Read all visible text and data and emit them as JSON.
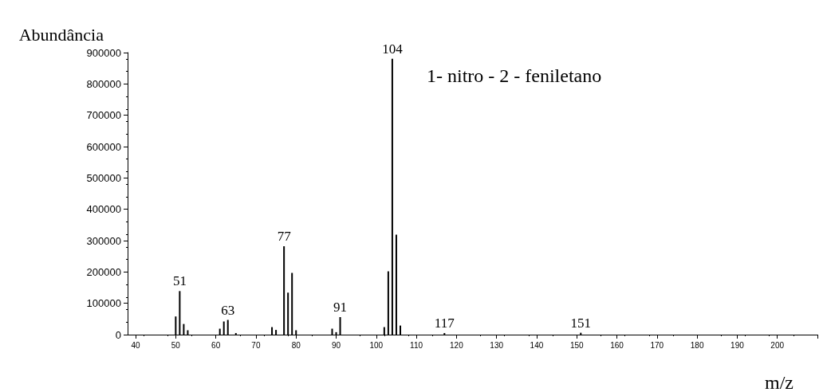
{
  "chart_data": {
    "type": "bar",
    "title": "1- nitro - 2 - feniletano",
    "xlabel": "m/z",
    "ylabel": "Abundância",
    "x": [
      50,
      51,
      52,
      53,
      61,
      62,
      63,
      65,
      74,
      75,
      77,
      78,
      79,
      80,
      89,
      90,
      91,
      102,
      103,
      104,
      105,
      106,
      117,
      151
    ],
    "values": [
      58000,
      139000,
      34000,
      14000,
      19000,
      42000,
      47000,
      5000,
      24000,
      15000,
      282000,
      134000,
      197000,
      14000,
      19000,
      8000,
      56000,
      24000,
      202000,
      880000,
      319000,
      29000,
      5000,
      6000
    ],
    "color": "#000000",
    "xlim": [
      38,
      210
    ],
    "xticks": [
      40,
      50,
      60,
      70,
      80,
      90,
      100,
      110,
      120,
      130,
      140,
      150,
      160,
      170,
      180,
      190,
      200,
      {
        "value": 210,
        "label": null
      }
    ],
    "ylim": [
      0,
      900000
    ],
    "yticks": [
      0,
      100000,
      200000,
      300000,
      400000,
      500000,
      600000,
      700000,
      800000,
      900000
    ],
    "grid": false,
    "annotations": [
      {
        "text": "51",
        "x": 51,
        "y": 139000
      },
      {
        "text": "63",
        "x": 63,
        "y": 47000
      },
      {
        "text": "77",
        "x": 77,
        "y": 282000
      },
      {
        "text": "91",
        "x": 91,
        "y": 56000
      },
      {
        "text": "104",
        "x": 104,
        "y": 880000
      },
      {
        "text": "117",
        "x": 117,
        "y": 5000
      },
      {
        "text": "151",
        "x": 151,
        "y": 6000
      }
    ]
  }
}
